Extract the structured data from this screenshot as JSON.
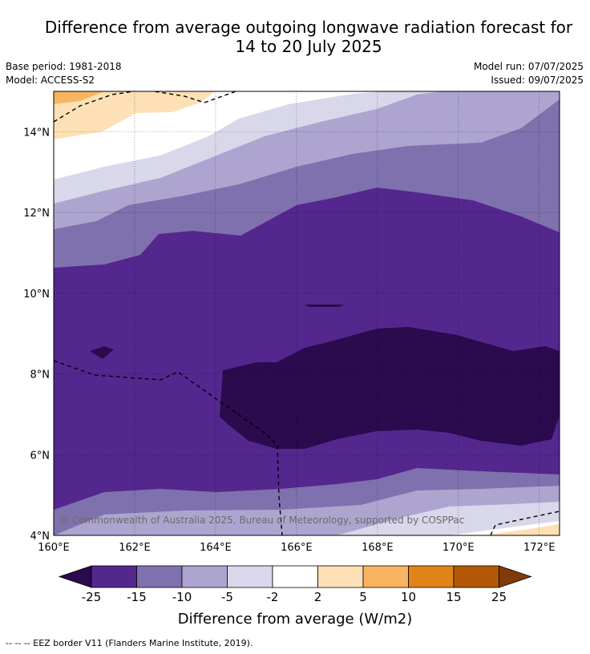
{
  "title_line1": "Difference from average outgoing longwave radiation forecast for",
  "title_line2": "14 to 20 July 2025",
  "base_period": "Base period: 1981-2018",
  "model": "Model: ACCESS-S2",
  "model_run": "Model run: 07/07/2025",
  "issued": "Issued: 09/07/2025",
  "map": {
    "lat_labels": [
      "14°N",
      "12°N",
      "10°N",
      "8°N",
      "6°N",
      "4°N"
    ],
    "lon_labels": [
      "160°E",
      "162°E",
      "164°E",
      "166°E",
      "168°E",
      "170°E",
      "172°E"
    ],
    "extent": {
      "lon_min": 160,
      "lon_max": 172.5,
      "lat_min": 4,
      "lat_max": 15
    },
    "copyright": "© Commonwealth of Australia 2025, Bureau of Meteorology, supported by COSPPac"
  },
  "colorbar": {
    "levels": [
      "-25",
      "-15",
      "-10",
      "-5",
      "-2",
      "2",
      "5",
      "10",
      "15",
      "25"
    ],
    "colors": [
      "#2b0a4d",
      "#54278f",
      "#7f71ad",
      "#ada5d0",
      "#d9d8eb",
      "#ffffff",
      "#fde0b5",
      "#f9b462",
      "#e08319",
      "#b35806",
      "#7f3b08"
    ],
    "title": "Difference from average (W/m2)"
  },
  "footnote": "--  --  -- EEZ border V11 (Flanders Marine Institute, 2019)."
}
